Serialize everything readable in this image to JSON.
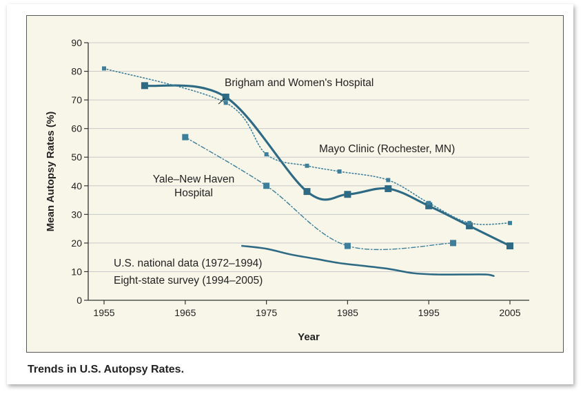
{
  "caption": "Trends in U.S. Autopsy Rates.",
  "chart_data": {
    "type": "line",
    "title": "",
    "xlabel": "Year",
    "ylabel": "Mean Autopsy Rates (%)",
    "xlim": [
      1955,
      2005
    ],
    "ylim": [
      0,
      90
    ],
    "xticks": [
      1955,
      1965,
      1975,
      1985,
      1995,
      2005
    ],
    "yticks": [
      0,
      10,
      20,
      30,
      40,
      50,
      60,
      70,
      80,
      90
    ],
    "grid": true,
    "colors": {
      "brigham": "#2f6a85",
      "mayo": "#3d7e9a",
      "yale": "#3d7e9a",
      "national": "#2f6a85",
      "grid": "#c8c8c8",
      "axis": "#333333"
    },
    "series": [
      {
        "name": "Brigham and Women's Hospital",
        "label": "Brigham and Women's Hospital",
        "style": "solid-thick",
        "x": [
          1960,
          1970,
          1980,
          1985,
          1990,
          1995,
          2000,
          2005
        ],
        "y": [
          75,
          71,
          38,
          37,
          39,
          33,
          26,
          19
        ]
      },
      {
        "name": "Mayo Clinic (Rochester, MN)",
        "label": "Mayo Clinic (Rochester, MN)",
        "style": "dotted",
        "x": [
          1955,
          1970,
          1975,
          1980,
          1984,
          1990,
          1995,
          2000,
          2005
        ],
        "y": [
          81,
          69,
          51,
          47,
          45,
          42,
          34,
          27,
          27
        ]
      },
      {
        "name": "Yale–New Haven Hospital",
        "label_lines": [
          "Yale–New Haven",
          "Hospital"
        ],
        "style": "dash-dot",
        "x": [
          1965,
          1975,
          1985,
          1998
        ],
        "y": [
          57,
          40,
          19,
          20
        ]
      },
      {
        "name": "U.S. national data (1972–1994) / Eight-state survey (1994–2005)",
        "label_lines": [
          "U.S. national data (1972–1994)",
          "Eight-state survey (1994–2005)"
        ],
        "style": "solid-rough",
        "x": [
          1972,
          1975,
          1978,
          1981,
          1984,
          1987,
          1990,
          1993,
          1996,
          1999,
          2002,
          2003
        ],
        "y": [
          19,
          18,
          16,
          14.5,
          13,
          12,
          11,
          9.5,
          9,
          9,
          9,
          8.5
        ]
      }
    ]
  }
}
